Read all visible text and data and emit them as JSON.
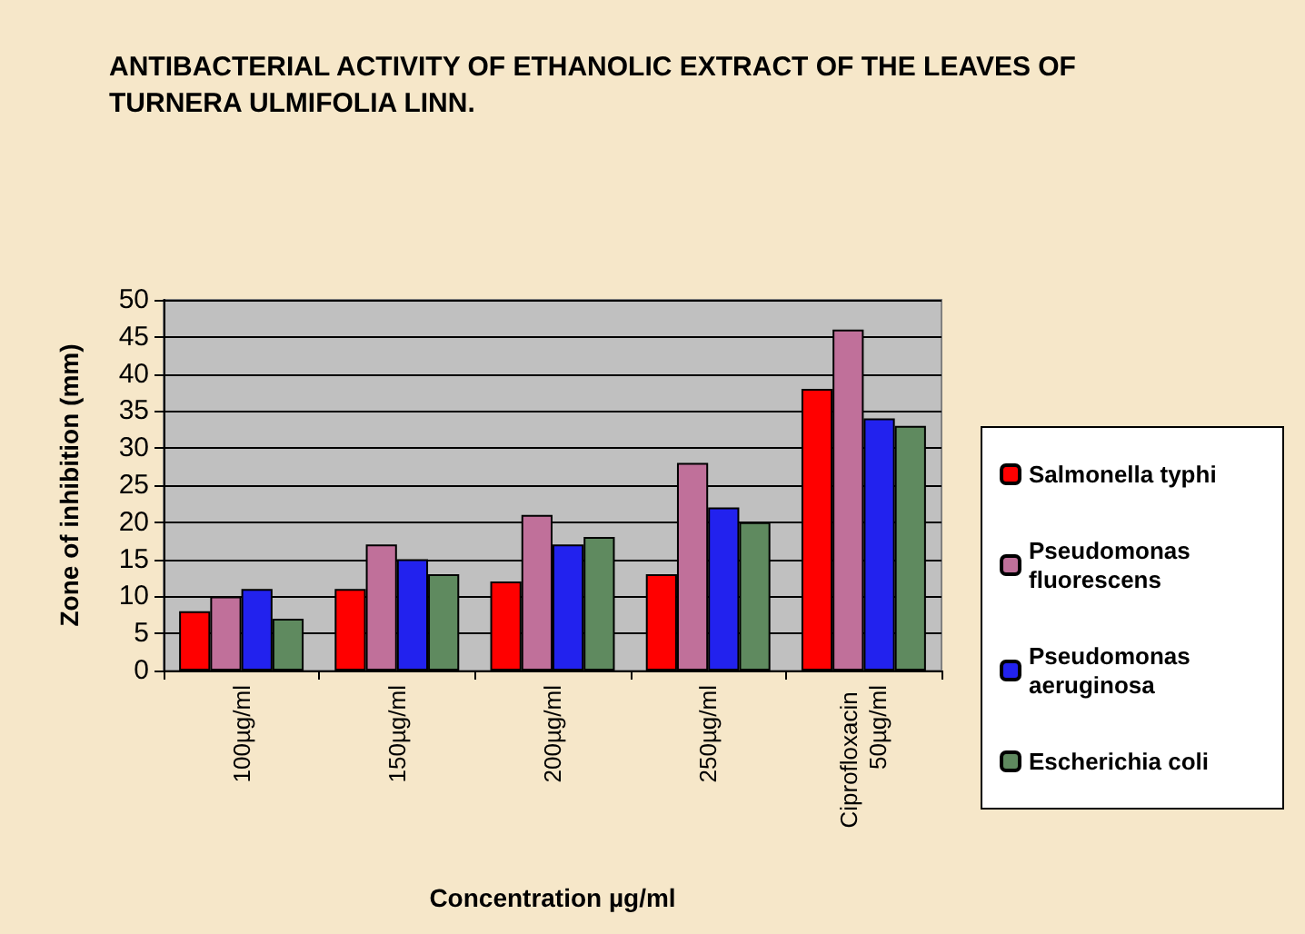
{
  "chart_data": {
    "type": "bar",
    "title": "ANTIBACTERIAL ACTIVITY OF ETHANOLIC EXTRACT OF THE LEAVES OF TURNERA ULMIFOLIA LINN.",
    "xlabel": "Concentration µg/ml",
    "ylabel": "Zone of inhibition (mm)",
    "categories": [
      "100µg/ml",
      "150µg/ml",
      "200µg/ml",
      "250µg/ml",
      "Ciprofloxacin 50µg/ml"
    ],
    "series": [
      {
        "name": "Salmonella typhi",
        "color": "#ff0000",
        "values": [
          8,
          11,
          12,
          13,
          38
        ]
      },
      {
        "name": "Pseudomonas fluorescens",
        "color": "#c0709a",
        "values": [
          10,
          17,
          21,
          28,
          46
        ]
      },
      {
        "name": "Pseudomonas aeruginosa",
        "color": "#2222ee",
        "values": [
          11,
          15,
          17,
          22,
          34
        ]
      },
      {
        "name": "Escherichia coli",
        "color": "#5f8a5f",
        "values": [
          7,
          13,
          18,
          20,
          33
        ]
      }
    ],
    "ylim": [
      0,
      50
    ],
    "yticks": [
      0,
      5,
      10,
      15,
      20,
      25,
      30,
      35,
      40,
      45,
      50
    ],
    "grid": "y",
    "legend": "right"
  }
}
